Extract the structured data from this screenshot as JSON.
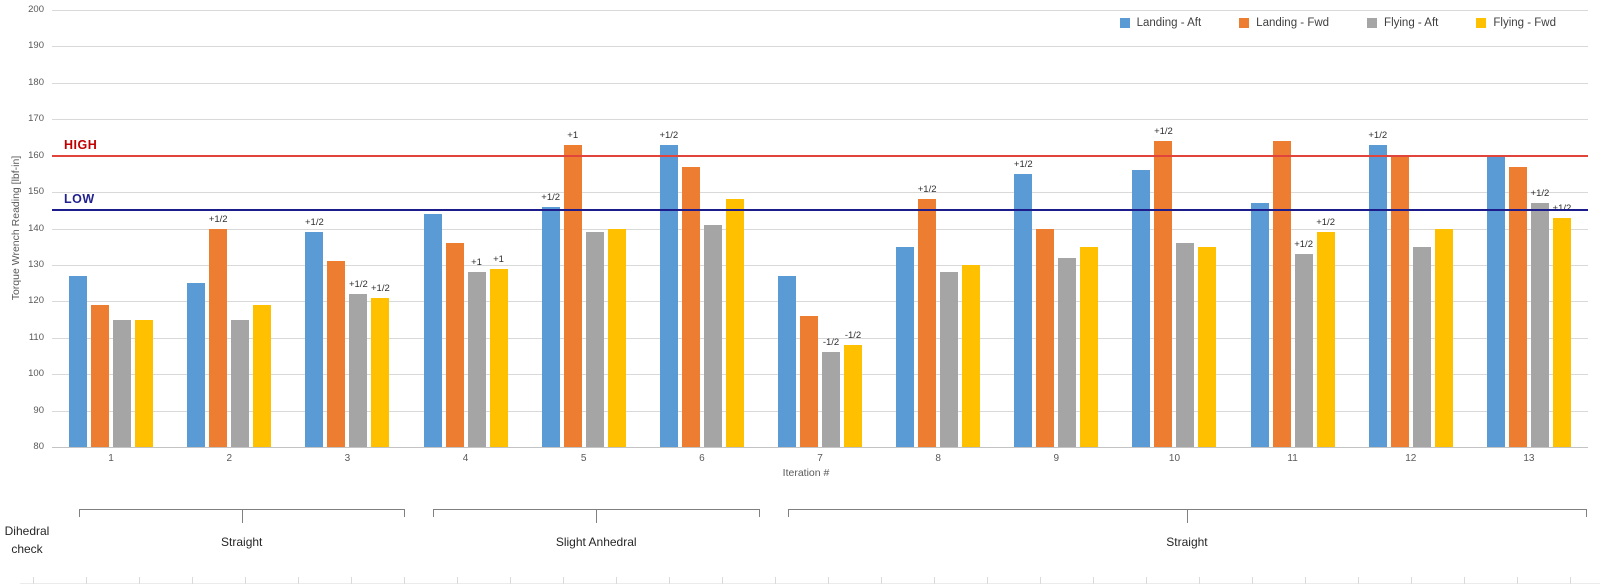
{
  "chart_data": {
    "type": "bar",
    "title": "",
    "xlabel": "Iteration #",
    "ylabel": "Torque Wrench Reading [lbf-in]",
    "ylim": [
      80,
      200
    ],
    "ytick_step": 10,
    "grid": true,
    "legend_position": "top-right",
    "categories": [
      "1",
      "2",
      "3",
      "4",
      "5",
      "6",
      "7",
      "8",
      "9",
      "10",
      "11",
      "12",
      "13"
    ],
    "series": [
      {
        "name": "Landing - Aft",
        "color": "#5b9bd5",
        "values": [
          127,
          125,
          139,
          144,
          146,
          163,
          127,
          135,
          155,
          156,
          147,
          163,
          160
        ],
        "annotations": [
          "",
          "",
          "+1/2",
          "",
          "+1/2",
          "+1/2",
          "",
          "",
          "+1/2",
          "",
          "",
          "+1/2",
          ""
        ]
      },
      {
        "name": "Landing - Fwd",
        "color": "#ed7d31",
        "values": [
          119,
          140,
          131,
          136,
          163,
          157,
          116,
          148,
          140,
          164,
          164,
          160,
          157
        ],
        "annotations": [
          "",
          "+1/2",
          "",
          "",
          "+1",
          "",
          "",
          "+1/2",
          "",
          "+1/2",
          "",
          "",
          ""
        ]
      },
      {
        "name": "Flying - Aft",
        "color": "#a5a5a5",
        "values": [
          115,
          115,
          122,
          128,
          139,
          141,
          106,
          128,
          132,
          136,
          133,
          135,
          147
        ],
        "annotations": [
          "",
          "",
          "+1/2",
          "+1",
          "",
          "",
          "-1/2",
          "",
          "",
          "",
          "+1/2",
          "",
          "+1/2"
        ]
      },
      {
        "name": "Flying - Fwd",
        "color": "#ffc000",
        "values": [
          115,
          119,
          121,
          129,
          140,
          148,
          108,
          130,
          135,
          135,
          139,
          140,
          143
        ],
        "annotations": [
          "",
          "",
          "+1/2",
          "+1",
          "",
          "",
          "-1/2",
          "",
          "",
          "",
          "+1/2",
          "",
          "+1/2"
        ]
      }
    ],
    "ref_lines": [
      {
        "label": "HIGH",
        "value": 160,
        "label_color": "#c00000",
        "line_color": "#e0443a"
      },
      {
        "label": "LOW",
        "value": 145,
        "label_color": "#21218f",
        "line_color": "#1c1c8c"
      }
    ],
    "groups": [
      {
        "label": "Straight",
        "from": 1,
        "to": 3
      },
      {
        "label": "Slight Anhedral",
        "from": 4,
        "to": 6
      },
      {
        "label": "Straight",
        "from": 7,
        "to": 13
      }
    ],
    "group_axis_label": "Dihedral check",
    "group_label_lines": [
      "Dihedral",
      "check"
    ]
  }
}
